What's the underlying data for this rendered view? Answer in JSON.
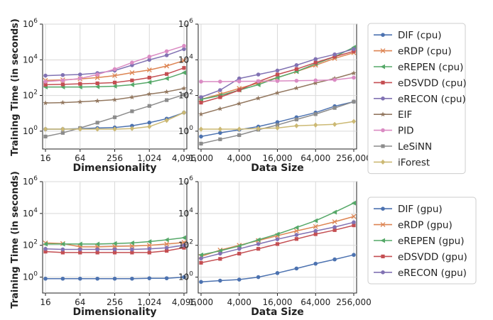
{
  "colors": {
    "DIF": "#4c72b0",
    "eRDP": "#dd8452",
    "eREPEN": "#55a868",
    "eDSVDD": "#c44e52",
    "eRECON": "#8172b3",
    "EIF": "#937860",
    "PID": "#da8bc3",
    "LeSiNN": "#8c8c8c",
    "iForest": "#ccb974"
  },
  "legend_top": {
    "entries": [
      {
        "label": "DIF (cpu)",
        "key": "DIF",
        "marker": "circle"
      },
      {
        "label": "eRDP (cpu)",
        "key": "eRDP",
        "marker": "x"
      },
      {
        "label": "eREPEN (cpu)",
        "key": "eREPEN",
        "marker": "tri"
      },
      {
        "label": "eDSVDD (cpu)",
        "key": "eDSVDD",
        "marker": "square"
      },
      {
        "label": "eRECON (cpu)",
        "key": "eRECON",
        "marker": "circle"
      },
      {
        "label": "EIF",
        "key": "EIF",
        "marker": "star"
      },
      {
        "label": "PID",
        "key": "PID",
        "marker": "circle"
      },
      {
        "label": "LeSiNN",
        "key": "LeSiNN",
        "marker": "square"
      },
      {
        "label": "iForest",
        "key": "iForest",
        "marker": "diamond"
      }
    ]
  },
  "legend_bottom": {
    "entries": [
      {
        "label": "DIF (gpu)",
        "key": "DIF",
        "marker": "circle"
      },
      {
        "label": "eRDP (gpu)",
        "key": "eRDP",
        "marker": "x"
      },
      {
        "label": "eREPEN (gpu)",
        "key": "eREPEN",
        "marker": "tri"
      },
      {
        "label": "eDSVDD (gpu)",
        "key": "eDSVDD",
        "marker": "square"
      },
      {
        "label": "eRECON (gpu)",
        "key": "eRECON",
        "marker": "circle"
      }
    ]
  },
  "chart_data": [
    {
      "type": "line",
      "panel": "top-left",
      "xlabel": "Dimensionality",
      "ylabel": "Training Time (in seconds)",
      "xscale": "log2",
      "yscale": "log10",
      "xlim": [
        16,
        4096
      ],
      "ylim": [
        0.1,
        1000000
      ],
      "xticks": [
        16,
        64,
        256,
        1024,
        4096
      ],
      "xtick_labels": [
        "16",
        "64",
        "256",
        "1,024",
        "4,096"
      ],
      "yticks": [
        1,
        100,
        10000,
        1000000
      ],
      "ytick_labels": [
        "10^0",
        "10^2",
        "10^4",
        "10^6"
      ],
      "grid": true,
      "x": [
        16,
        32,
        64,
        128,
        256,
        512,
        1024,
        2048,
        4096
      ],
      "series": [
        {
          "name": "DIF (cpu)",
          "key": "DIF",
          "marker": "circle",
          "values": [
            1.3,
            1.3,
            1.4,
            1.5,
            1.6,
            2.0,
            3.0,
            5.0,
            11
          ]
        },
        {
          "name": "eRDP (cpu)",
          "key": "eRDP",
          "marker": "x",
          "values": [
            700,
            750,
            850,
            1000,
            1300,
            1900,
            2700,
            4500,
            9000
          ]
        },
        {
          "name": "eREPEN (cpu)",
          "key": "eREPEN",
          "marker": "tri",
          "values": [
            300,
            300,
            300,
            310,
            330,
            400,
            550,
            900,
            1900
          ]
        },
        {
          "name": "eDSVDD (cpu)",
          "key": "eDSVDD",
          "marker": "square",
          "values": [
            400,
            420,
            450,
            480,
            530,
            700,
            1000,
            1600,
            3500
          ]
        },
        {
          "name": "eRECON (cpu)",
          "key": "eRECON",
          "marker": "circle",
          "values": [
            1300,
            1400,
            1500,
            1800,
            2500,
            5000,
            10000,
            18000,
            40000
          ]
        },
        {
          "name": "EIF",
          "key": "EIF",
          "marker": "star",
          "values": [
            38,
            40,
            44,
            50,
            58,
            80,
            120,
            160,
            250
          ]
        },
        {
          "name": "PID",
          "key": "PID",
          "marker": "circle",
          "values": [
            600,
            700,
            900,
            1500,
            3000,
            7000,
            15000,
            30000,
            60000
          ]
        },
        {
          "name": "LeSiNN",
          "key": "LeSiNN",
          "marker": "square",
          "values": [
            0.5,
            0.8,
            1.5,
            3,
            6,
            13,
            26,
            55,
            110
          ]
        },
        {
          "name": "iForest",
          "key": "iForest",
          "marker": "diamond",
          "values": [
            1.3,
            1.3,
            1.3,
            1.3,
            1.3,
            1.4,
            1.8,
            4.0,
            11
          ]
        }
      ]
    },
    {
      "type": "line",
      "panel": "top-right",
      "xlabel": "Data Size",
      "xscale": "log4",
      "yscale": "log10",
      "xlim": [
        1000,
        256000
      ],
      "ylim": [
        0.1,
        1000000
      ],
      "xticks": [
        1000,
        4000,
        16000,
        64000,
        256000
      ],
      "xtick_labels": [
        "1,000",
        "4,000",
        "16,000",
        "64,000",
        "256,000"
      ],
      "yticks": [
        1,
        100,
        10000,
        1000000
      ],
      "ytick_labels": [
        "10^0",
        "10^2",
        "10^4",
        "10^6"
      ],
      "grid": true,
      "x": [
        1000,
        2000,
        4000,
        8000,
        16000,
        32000,
        64000,
        128000,
        256000
      ],
      "series": [
        {
          "name": "DIF (cpu)",
          "key": "DIF",
          "marker": "circle",
          "values": [
            0.5,
            0.8,
            1.2,
            1.8,
            3.2,
            6,
            11,
            25,
            45
          ]
        },
        {
          "name": "eRDP (cpu)",
          "key": "eRDP",
          "marker": "x",
          "values": [
            60,
            120,
            250,
            500,
            1000,
            2200,
            5000,
            12000,
            25000
          ]
        },
        {
          "name": "eREPEN (cpu)",
          "key": "eREPEN",
          "marker": "tri",
          "values": [
            60,
            100,
            200,
            400,
            1000,
            2200,
            6000,
            15000,
            50000
          ]
        },
        {
          "name": "eDSVDD (cpu)",
          "key": "eDSVDD",
          "marker": "square",
          "values": [
            40,
            80,
            200,
            600,
            1500,
            3000,
            7000,
            15000,
            30000
          ]
        },
        {
          "name": "eRECON (cpu)",
          "key": "eRECON",
          "marker": "circle",
          "values": [
            80,
            200,
            900,
            1500,
            2500,
            5000,
            11000,
            20000,
            40000
          ]
        },
        {
          "name": "EIF",
          "key": "EIF",
          "marker": "star",
          "values": [
            9,
            18,
            35,
            70,
            140,
            260,
            500,
            900,
            1800
          ]
        },
        {
          "name": "PID",
          "key": "PID",
          "marker": "circle",
          "values": [
            600,
            600,
            620,
            630,
            650,
            670,
            700,
            750,
            1000
          ]
        },
        {
          "name": "LeSiNN",
          "key": "LeSiNN",
          "marker": "square",
          "values": [
            0.2,
            0.35,
            0.6,
            1.2,
            2.2,
            4.5,
            9,
            20,
            45
          ]
        },
        {
          "name": "iForest",
          "key": "iForest",
          "marker": "diamond",
          "values": [
            1.3,
            1.3,
            1.3,
            1.4,
            1.5,
            2.0,
            2.2,
            2.4,
            3.5
          ]
        }
      ]
    },
    {
      "type": "line",
      "panel": "bottom-left",
      "xlabel": "Dimensionality",
      "ylabel": "Training Time (in seconds)",
      "xscale": "log2",
      "yscale": "log10",
      "xlim": [
        16,
        4096
      ],
      "ylim": [
        0.1,
        1000000
      ],
      "xticks": [
        16,
        64,
        256,
        1024,
        4096
      ],
      "xtick_labels": [
        "16",
        "64",
        "256",
        "1,024",
        "4,096"
      ],
      "yticks": [
        1,
        100,
        10000,
        1000000
      ],
      "ytick_labels": [
        "10^0",
        "10^2",
        "10^4",
        "10^6"
      ],
      "grid": true,
      "x": [
        16,
        32,
        64,
        128,
        256,
        512,
        1024,
        2048,
        4096
      ],
      "series": [
        {
          "name": "DIF (gpu)",
          "key": "DIF",
          "marker": "circle",
          "values": [
            0.8,
            0.8,
            0.8,
            0.8,
            0.8,
            0.8,
            0.85,
            0.85,
            1.0
          ]
        },
        {
          "name": "eRDP (gpu)",
          "key": "eRDP",
          "marker": "x",
          "values": [
            140,
            130,
            80,
            80,
            85,
            90,
            100,
            120,
            150
          ]
        },
        {
          "name": "eREPEN (gpu)",
          "key": "eREPEN",
          "marker": "tri",
          "values": [
            120,
            120,
            120,
            120,
            130,
            140,
            170,
            220,
            300
          ]
        },
        {
          "name": "eDSVDD (gpu)",
          "key": "eDSVDD",
          "marker": "square",
          "values": [
            40,
            35,
            35,
            35,
            35,
            35,
            35,
            45,
            70
          ]
        },
        {
          "name": "eRECON (gpu)",
          "key": "eRECON",
          "marker": "circle",
          "values": [
            60,
            55,
            55,
            55,
            55,
            55,
            60,
            70,
            100
          ]
        }
      ]
    },
    {
      "type": "line",
      "panel": "bottom-right",
      "xlabel": "Data Size",
      "xscale": "log4",
      "yscale": "log10",
      "xlim": [
        1000,
        256000
      ],
      "ylim": [
        0.1,
        1000000
      ],
      "xticks": [
        1000,
        4000,
        16000,
        64000,
        256000
      ],
      "xtick_labels": [
        "1,000",
        "4,000",
        "16,000",
        "64,000",
        "256,000"
      ],
      "yticks": [
        1,
        100,
        10000,
        1000000
      ],
      "ytick_labels": [
        "10^0",
        "10^2",
        "10^4",
        "10^6"
      ],
      "grid": true,
      "x": [
        1000,
        2000,
        4000,
        8000,
        16000,
        32000,
        64000,
        128000,
        256000
      ],
      "series": [
        {
          "name": "DIF (gpu)",
          "key": "DIF",
          "marker": "circle",
          "values": [
            0.5,
            0.6,
            0.7,
            1.0,
            1.8,
            3.5,
            7,
            13,
            25
          ]
        },
        {
          "name": "eRDP (gpu)",
          "key": "eRDP",
          "marker": "x",
          "values": [
            20,
            50,
            100,
            200,
            400,
            800,
            1500,
            3000,
            6500
          ]
        },
        {
          "name": "eREPEN (gpu)",
          "key": "eREPEN",
          "marker": "tri",
          "values": [
            25,
            45,
            90,
            220,
            500,
            1300,
            3500,
            12000,
            45000
          ]
        },
        {
          "name": "eDSVDD (gpu)",
          "key": "eDSVDD",
          "marker": "square",
          "values": [
            8,
            14,
            30,
            60,
            120,
            250,
            500,
            900,
            1800
          ]
        },
        {
          "name": "eRECON (gpu)",
          "key": "eRECON",
          "marker": "circle",
          "values": [
            15,
            30,
            60,
            120,
            240,
            450,
            800,
            1400,
            2800
          ]
        }
      ]
    }
  ]
}
